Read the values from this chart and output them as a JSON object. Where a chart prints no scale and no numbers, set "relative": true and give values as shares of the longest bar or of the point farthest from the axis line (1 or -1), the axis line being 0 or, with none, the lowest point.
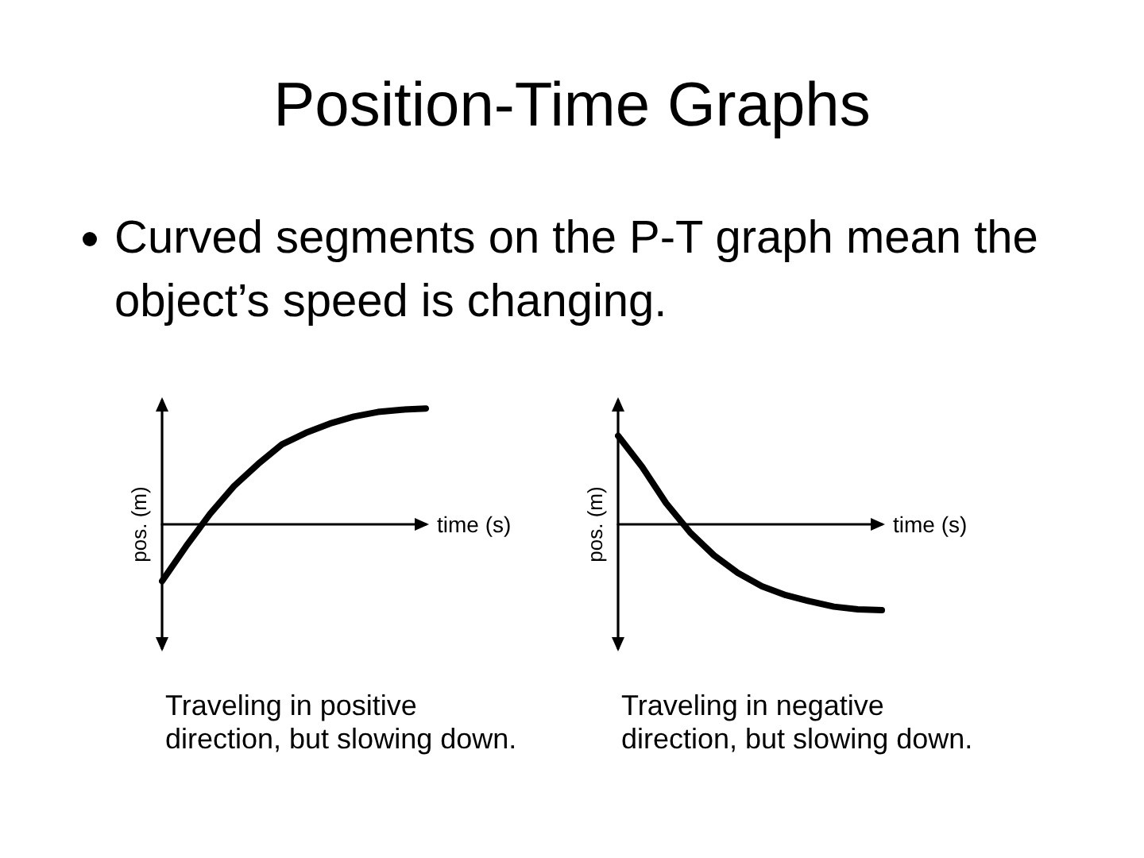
{
  "chart_data": [
    {
      "type": "line",
      "title": "Position-Time Graphs",
      "subtitle": "Curved segments on the P-T graph mean the object’s speed is changing.",
      "xlabel": "time (s)",
      "ylabel": "pos. (m)",
      "annotations": [
        "Traveling in positive direction, but slowing down."
      ],
      "relative": true,
      "marker": "none",
      "line_style": "solid",
      "categories": [
        null,
        null,
        null,
        null,
        null,
        null,
        null,
        null,
        null,
        null,
        null,
        null
      ],
      "series": [
        {
          "color": "#000000",
          "values": [
            -0.49,
            -0.19,
            0.09,
            0.33,
            0.52,
            0.69,
            0.79,
            0.87,
            0.93,
            0.97,
            0.99,
            1
          ]
        }
      ]
    },
    {
      "type": "line",
      "xlabel": "time (s)",
      "ylabel": "pos. (m)",
      "annotations": [
        "Traveling in negative direction, but slowing down."
      ],
      "relative": true,
      "marker": "none",
      "line_style": "solid",
      "categories": [
        null,
        null,
        null,
        null,
        null,
        null,
        null,
        null,
        null,
        null,
        null,
        null
      ],
      "series": [
        {
          "color": "#000000",
          "values": [
            1,
            0.65,
            0.24,
            -0.09,
            -0.35,
            -0.55,
            -0.7,
            -0.8,
            -0.87,
            -0.93,
            -0.96,
            -0.97
          ]
        }
      ]
    }
  ]
}
